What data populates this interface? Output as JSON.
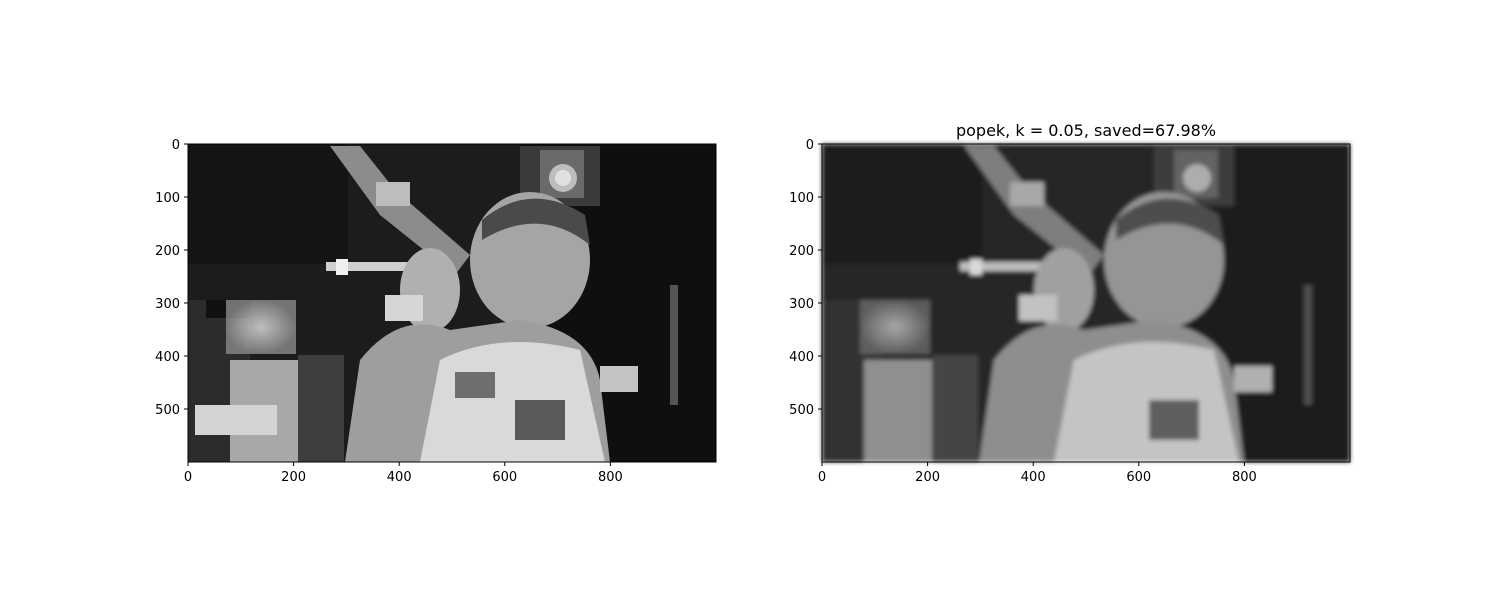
{
  "chart_data": [
    {
      "type": "image",
      "title": "",
      "xlabel": "",
      "ylabel": "",
      "xlim": [
        0,
        1000
      ],
      "ylim": [
        600,
        0
      ],
      "xticks": [
        0,
        200,
        400,
        600,
        800
      ],
      "yticks": [
        0,
        100,
        200,
        300,
        400,
        500
      ],
      "colormap": "gray",
      "grid": false
    },
    {
      "type": "image",
      "title": "popek, k = 0.05, saved=67.98%",
      "xlabel": "",
      "ylabel": "",
      "xlim": [
        0,
        1000
      ],
      "ylim": [
        600,
        0
      ],
      "xticks": [
        0,
        200,
        400,
        600,
        800
      ],
      "yticks": [
        0,
        100,
        200,
        300,
        400,
        500
      ],
      "colormap": "gray",
      "grid": false
    }
  ]
}
